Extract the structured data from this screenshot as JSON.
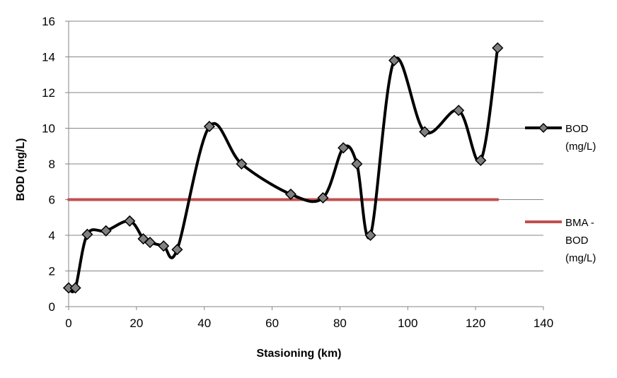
{
  "chart_data": {
    "type": "line",
    "title": "",
    "xlabel": "Stasioning (km)",
    "ylabel": "BOD (mg/L)",
    "xlim": [
      0,
      140
    ],
    "ylim": [
      0,
      16
    ],
    "xticks": [
      "0",
      "20",
      "40",
      "60",
      "80",
      "100",
      "120",
      "140"
    ],
    "yticks": [
      "0",
      "2",
      "4",
      "6",
      "8",
      "10",
      "12",
      "14",
      "16"
    ],
    "grid": "horizontal",
    "legend_position": "right",
    "series": [
      {
        "name": "BOD (mg/L)",
        "legend_lines": [
          "BOD",
          "(mg/L)"
        ],
        "color": "#000000",
        "marker_color": "#808080",
        "marker": "diamond",
        "smooth": true,
        "x": [
          0,
          2,
          5.5,
          11,
          18,
          22,
          24,
          28,
          32,
          41.5,
          51,
          65.5,
          75,
          81,
          85,
          89,
          96,
          105,
          115,
          121.5,
          126.5
        ],
        "y": [
          1.05,
          1.05,
          4.05,
          4.25,
          4.8,
          3.8,
          3.6,
          3.4,
          3.2,
          10.1,
          8.0,
          6.3,
          6.1,
          8.9,
          8.0,
          4.0,
          13.8,
          9.8,
          11.0,
          8.2,
          14.5
        ]
      },
      {
        "name": "BMA - BOD (mg/L)",
        "legend_lines": [
          "BMA -",
          "BOD",
          "(mg/L)"
        ],
        "color": "#C0504D",
        "marker": "none",
        "x": [
          0,
          126.5
        ],
        "y": [
          6,
          6
        ]
      }
    ]
  }
}
